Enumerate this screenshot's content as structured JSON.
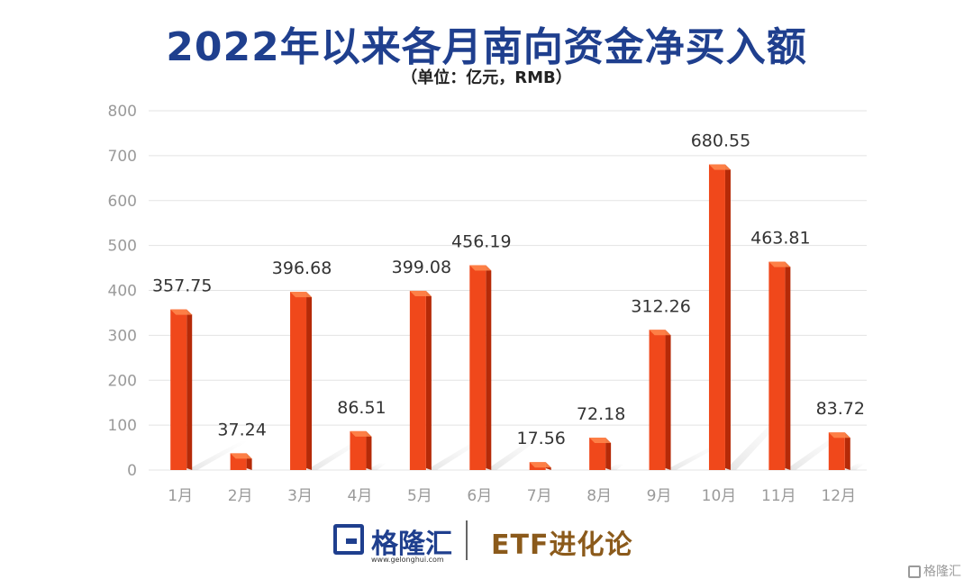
{
  "chart_data": {
    "type": "bar",
    "title": "2022年以来各月南向资金净买入额",
    "subtitle": "（单位：亿元，RMB）",
    "categories": [
      "1月",
      "2月",
      "3月",
      "4月",
      "5月",
      "6月",
      "7月",
      "8月",
      "9月",
      "10月",
      "11月",
      "12月"
    ],
    "values": [
      357.75,
      37.24,
      396.68,
      86.51,
      399.08,
      456.19,
      17.56,
      72.18,
      312.26,
      680.55,
      463.81,
      83.72
    ],
    "value_labels": [
      "357.75",
      "37.24",
      "396.68",
      "86.51",
      "399.08",
      "456.19",
      "17.56",
      "72.18",
      "312.26",
      "680.55",
      "463.81",
      "83.72"
    ],
    "y_ticks": [
      "0",
      "100",
      "200",
      "300",
      "400",
      "500",
      "600",
      "700",
      "800"
    ],
    "ylim": [
      0,
      800
    ],
    "grid": true,
    "bar_color": "#f0481b"
  },
  "footer": {
    "logo_text": "格隆汇",
    "logo_url": "www.gelonghui.com",
    "brand_text": "ETF进化论"
  },
  "watermark": {
    "text": "格隆汇"
  },
  "colors": {
    "title": "#1f3f8e",
    "brand": "#8b5a1b",
    "bar": "#f0481b",
    "bar_side": "#b52a08"
  }
}
